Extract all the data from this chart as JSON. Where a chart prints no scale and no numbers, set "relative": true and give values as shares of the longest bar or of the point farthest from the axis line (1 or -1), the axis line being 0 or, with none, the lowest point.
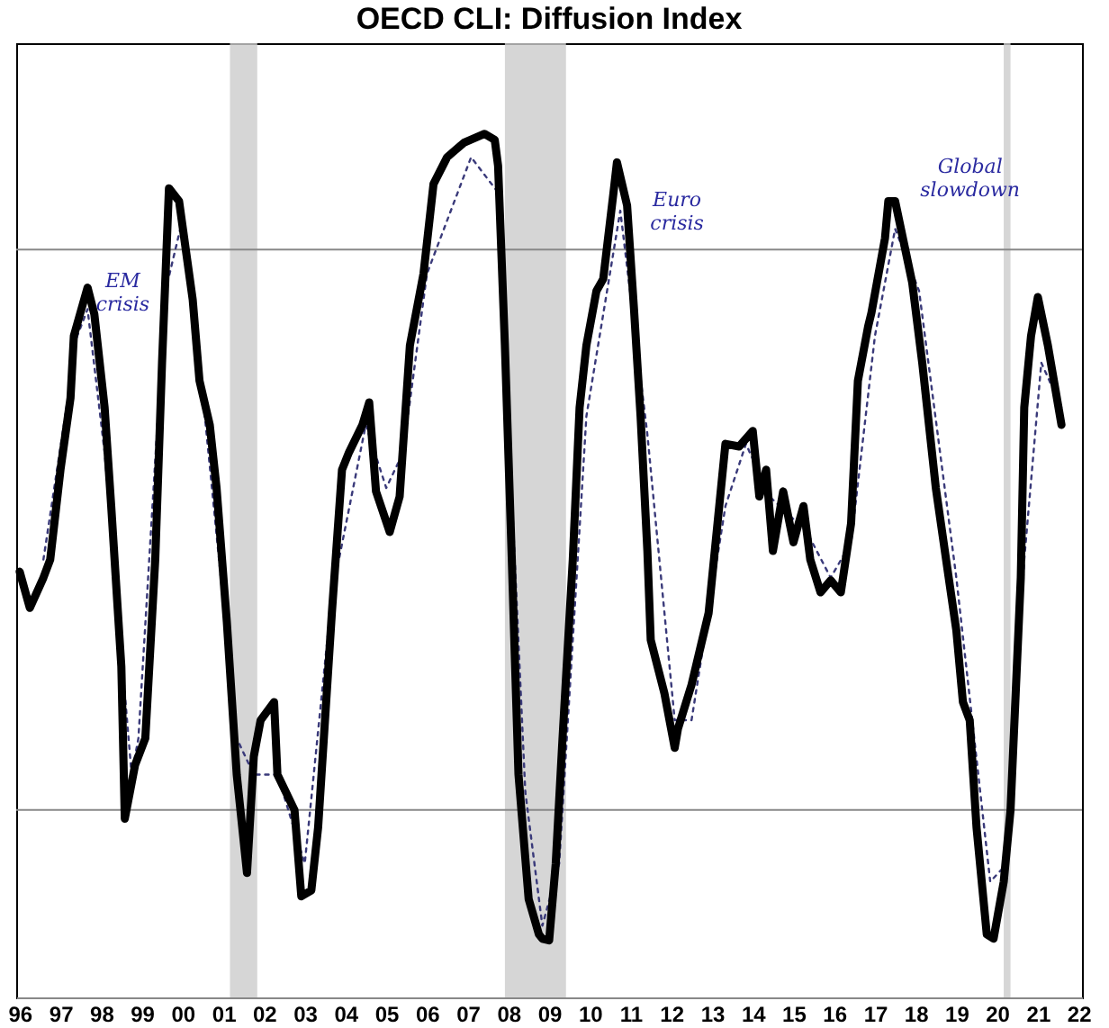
{
  "chart_data": {
    "type": "line",
    "title": "OECD CLI: Diffusion Index",
    "relative": true,
    "legend": false,
    "grid": false,
    "tick_labels": "x",
    "xlim": [
      "1995-12",
      "2022-02"
    ],
    "xticks": [
      {
        "value": "1996",
        "label": "96"
      },
      {
        "value": "1997",
        "label": "97"
      },
      {
        "value": "1998",
        "label": "98"
      },
      {
        "value": "1999",
        "label": "99"
      },
      {
        "value": "2000",
        "label": "00"
      },
      {
        "value": "2001",
        "label": "01"
      },
      {
        "value": "2002",
        "label": "02"
      },
      {
        "value": "2003",
        "label": "03"
      },
      {
        "value": "2004",
        "label": "04"
      },
      {
        "value": "2005",
        "label": "05"
      },
      {
        "value": "2006",
        "label": "06"
      },
      {
        "value": "2007",
        "label": "07"
      },
      {
        "value": "2008",
        "label": "08"
      },
      {
        "value": "2009",
        "label": "09"
      },
      {
        "value": "2010",
        "label": "10"
      },
      {
        "value": "2011",
        "label": "11"
      },
      {
        "value": "2012",
        "label": "12"
      },
      {
        "value": "2013",
        "label": "13"
      },
      {
        "value": "2014",
        "label": "14"
      },
      {
        "value": "2015",
        "label": "15"
      },
      {
        "value": "2016",
        "label": "16"
      },
      {
        "value": "2017",
        "label": "17"
      },
      {
        "value": "2018",
        "label": "18"
      },
      {
        "value": "2019",
        "label": "19"
      },
      {
        "value": "2020",
        "label": "20"
      },
      {
        "value": "2021",
        "label": "21"
      },
      {
        "value": "2022",
        "label": "22"
      }
    ],
    "series": [
      {
        "color": "#000000",
        "line_style": "solid",
        "x": [
          "1996-01",
          "1996-04",
          "1996-08",
          "1996-10",
          "1997-01",
          "1997-04",
          "1997-05",
          "1997-08",
          "1997-09",
          "1997-11",
          "1998-02",
          "1998-04",
          "1998-07",
          "1998-08",
          "1998-11",
          "1999-02",
          "1999-05",
          "1999-07",
          "1999-09",
          "1999-12",
          "2000-04",
          "2000-06",
          "2000-09",
          "2000-11",
          "2001-02",
          "2001-05",
          "2001-08",
          "2001-10",
          "2001-12",
          "2002-04",
          "2002-05",
          "2002-10",
          "2002-12",
          "2003-03",
          "2003-05",
          "2003-09",
          "2003-12",
          "2004-02",
          "2004-06",
          "2004-08",
          "2004-10",
          "2005-02",
          "2005-05",
          "2005-08",
          "2005-12",
          "2006-03",
          "2006-07",
          "2006-12",
          "2007-06",
          "2007-09",
          "2007-10",
          "2007-12",
          "2008-02",
          "2008-04",
          "2008-07",
          "2008-10",
          "2008-11",
          "2009-01",
          "2009-03",
          "2009-05",
          "2009-08",
          "2009-10",
          "2009-12",
          "2010-03",
          "2010-05",
          "2010-08",
          "2010-09",
          "2010-12",
          "2011-02",
          "2011-04",
          "2011-06",
          "2011-07",
          "2011-11",
          "2012-02",
          "2012-03",
          "2012-07",
          "2012-12",
          "2013-05",
          "2013-09",
          "2014-01",
          "2014-03",
          "2014-05",
          "2014-07",
          "2014-10",
          "2015-01",
          "2015-04",
          "2015-06",
          "2015-09",
          "2015-12",
          "2016-03",
          "2016-06",
          "2016-08",
          "2016-11",
          "2016-12",
          "2017-04",
          "2017-05",
          "2017-07",
          "2017-12",
          "2018-03",
          "2018-07",
          "2018-10",
          "2019-01",
          "2019-03",
          "2019-05",
          "2019-07",
          "2019-10",
          "2019-12",
          "2020-03",
          "2020-05",
          "2020-08",
          "2020-09",
          "2020-11",
          "2021-01",
          "2021-04",
          "2021-08"
        ],
        "values": [
          0.493,
          0.451,
          0.486,
          0.507,
          0.611,
          0.694,
          0.766,
          0.808,
          0.822,
          0.791,
          0.683,
          0.569,
          0.383,
          0.207,
          0.269,
          0.3,
          0.507,
          0.735,
          0.937,
          0.922,
          0.808,
          0.714,
          0.663,
          0.59,
          0.435,
          0.258,
          0.144,
          0.279,
          0.321,
          0.342,
          0.258,
          0.217,
          0.117,
          0.124,
          0.197,
          0.445,
          0.611,
          0.631,
          0.663,
          0.689,
          0.586,
          0.539,
          0.58,
          0.755,
          0.838,
          0.942,
          0.973,
          0.99,
          1.0,
          0.993,
          0.963,
          0.755,
          0.507,
          0.258,
          0.114,
          0.073,
          0.068,
          0.066,
          0.155,
          0.3,
          0.507,
          0.683,
          0.755,
          0.818,
          0.832,
          0.932,
          0.967,
          0.917,
          0.797,
          0.673,
          0.517,
          0.414,
          0.352,
          0.289,
          0.311,
          0.362,
          0.445,
          0.641,
          0.638,
          0.656,
          0.58,
          0.611,
          0.517,
          0.586,
          0.527,
          0.569,
          0.507,
          0.469,
          0.483,
          0.469,
          0.549,
          0.714,
          0.777,
          0.793,
          0.879,
          0.922,
          0.922,
          0.828,
          0.735,
          0.59,
          0.507,
          0.425,
          0.342,
          0.321,
          0.197,
          0.073,
          0.068,
          0.134,
          0.217,
          0.486,
          0.683,
          0.766,
          0.811,
          0.755,
          0.663
        ]
      },
      {
        "color": "#3a3a7a",
        "line_style": "dotted",
        "x": [
          "1996-08",
          "1997-06",
          "1997-09",
          "1998-02",
          "1998-10",
          "1998-12",
          "1999-08",
          "2000-01",
          "2000-06",
          "2001-05",
          "2001-10",
          "2002-05",
          "2003-01",
          "2003-09",
          "2004-07",
          "2005-01",
          "2005-06",
          "2006-01",
          "2007-02",
          "2007-10",
          "2008-06",
          "2008-11",
          "2009-04",
          "2009-12",
          "2010-10",
          "2011-06",
          "2012-02",
          "2012-07",
          "2013-05",
          "2013-11",
          "2014-06",
          "2015-05",
          "2015-12",
          "2016-06",
          "2017-01",
          "2017-07",
          "2018-02",
          "2019-01",
          "2019-11",
          "2020-04",
          "2020-09",
          "2021-02",
          "2021-08"
        ],
        "values": [
          0.507,
          0.766,
          0.797,
          0.631,
          0.258,
          0.3,
          0.818,
          0.901,
          0.735,
          0.3,
          0.258,
          0.258,
          0.155,
          0.466,
          0.663,
          0.59,
          0.631,
          0.838,
          0.973,
          0.932,
          0.238,
          0.083,
          0.155,
          0.673,
          0.911,
          0.652,
          0.321,
          0.321,
          0.569,
          0.641,
          0.58,
          0.539,
          0.486,
          0.527,
          0.766,
          0.89,
          0.818,
          0.486,
          0.134,
          0.155,
          0.507,
          0.735,
          0.683
        ]
      }
    ],
    "ref_lines": [
      {
        "axis": "y",
        "value": 0.866,
        "color": "#888888"
      },
      {
        "axis": "y",
        "value": 0.217,
        "color": "#888888"
      }
    ],
    "bands": [
      {
        "axis": "x",
        "from": "2001-03",
        "to": "2001-11",
        "color": "#cccccc"
      },
      {
        "axis": "x",
        "from": "2007-12",
        "to": "2009-06",
        "color": "#cccccc"
      },
      {
        "axis": "x",
        "from": "2020-03",
        "to": "2020-05",
        "color": "#cccccc"
      }
    ],
    "annotations": [
      "EM crisis",
      "Euro crisis",
      "Global slowdown"
    ]
  }
}
